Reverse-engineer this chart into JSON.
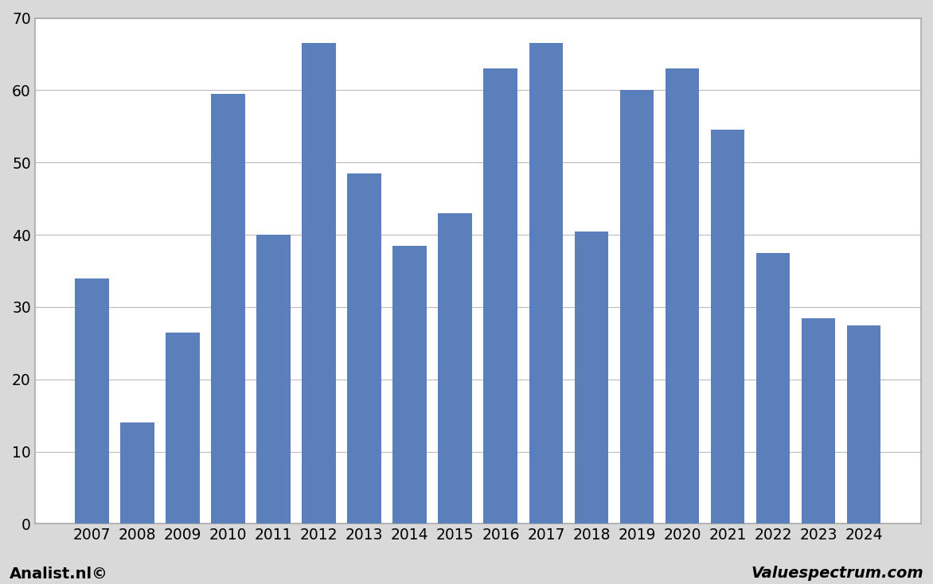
{
  "categories": [
    "2007",
    "2008",
    "2009",
    "2010",
    "2011",
    "2012",
    "2013",
    "2014",
    "2015",
    "2016",
    "2017",
    "2018",
    "2019",
    "2020",
    "2021",
    "2022",
    "2023",
    "2024"
  ],
  "values": [
    34,
    14,
    26.5,
    59.5,
    40.0,
    66.5,
    48.5,
    38.5,
    43.0,
    63.0,
    66.5,
    40.5,
    60.0,
    63.0,
    54.5,
    37.5,
    28.5,
    27.5
  ],
  "bar_color": "#5b7fbb",
  "ylim": [
    0,
    70
  ],
  "yticks": [
    0,
    10,
    20,
    30,
    40,
    50,
    60,
    70
  ],
  "plot_bg_color": "#ffffff",
  "figure_bg_color": "#d9d9d9",
  "grid_color": "#bbbbbb",
  "footer_left": "Analist.nl©",
  "footer_right": "Valuespectrum.com",
  "footer_fontsize": 14,
  "tick_fontsize": 13.5,
  "bar_width": 0.75,
  "edge_color": "none",
  "spine_color": "#aaaaaa"
}
